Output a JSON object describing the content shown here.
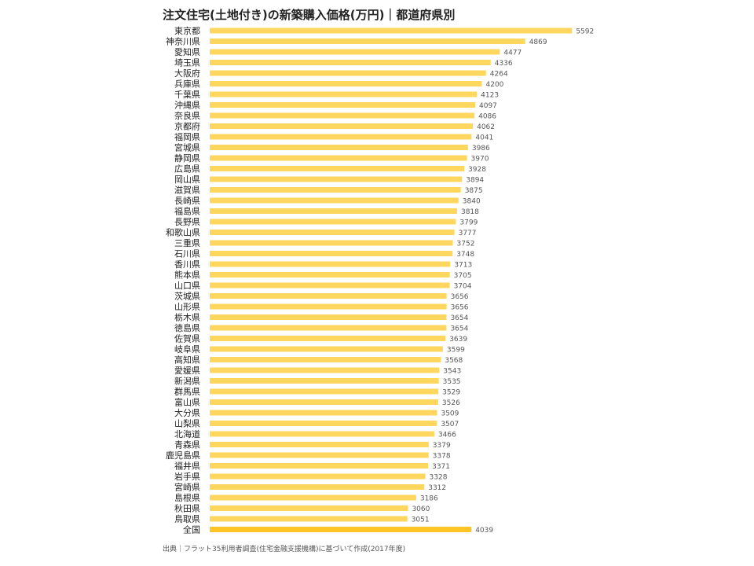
{
  "chart_data": {
    "type": "bar",
    "orientation": "horizontal",
    "title": "注文住宅(土地付き)の新築購入価格(万円)｜都道府県別",
    "source": "出典｜フラット35利用者調査(住宅金融支援機構)に基づいて作成(2017年度)",
    "bar_color": "#ffd75e",
    "highlight_color": "#ffc526",
    "highlight_category": "全国",
    "xlim": [
      0,
      5600
    ],
    "grid": false,
    "categories": [
      "東京都",
      "神奈川県",
      "愛知県",
      "埼玉県",
      "大阪府",
      "兵庫県",
      "千葉県",
      "沖縄県",
      "奈良県",
      "京都府",
      "福岡県",
      "宮城県",
      "静岡県",
      "広島県",
      "岡山県",
      "滋賀県",
      "長崎県",
      "福島県",
      "長野県",
      "和歌山県",
      "三重県",
      "石川県",
      "香川県",
      "熊本県",
      "山口県",
      "茨城県",
      "山形県",
      "栃木県",
      "徳島県",
      "佐賀県",
      "岐阜県",
      "高知県",
      "愛媛県",
      "新潟県",
      "群馬県",
      "富山県",
      "大分県",
      "山梨県",
      "北海道",
      "青森県",
      "鹿児島県",
      "福井県",
      "岩手県",
      "宮崎県",
      "島根県",
      "秋田県",
      "鳥取県",
      "全国"
    ],
    "values": [
      5592,
      4869,
      4477,
      4336,
      4264,
      4200,
      4123,
      4097,
      4086,
      4062,
      4041,
      3986,
      3970,
      3928,
      3894,
      3875,
      3840,
      3818,
      3799,
      3777,
      3752,
      3748,
      3713,
      3705,
      3704,
      3656,
      3656,
      3654,
      3654,
      3639,
      3599,
      3568,
      3543,
      3535,
      3529,
      3526,
      3509,
      3507,
      3466,
      3379,
      3378,
      3371,
      3328,
      3312,
      3186,
      3060,
      3051,
      4039
    ]
  }
}
